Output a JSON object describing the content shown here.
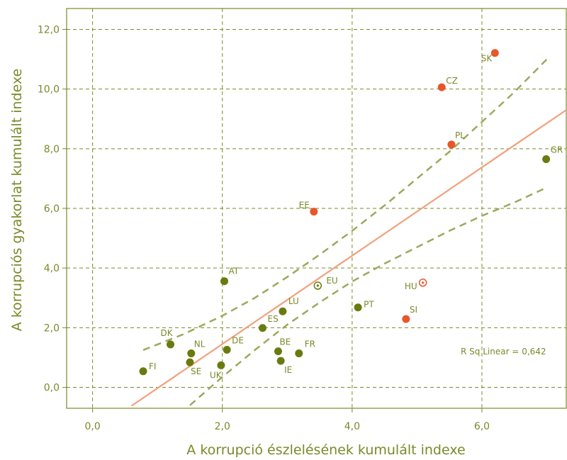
{
  "chart_data": {
    "type": "scatter",
    "title": "",
    "xlabel": "A korrupció észlelésének kumulált indexe",
    "ylabel": "A korrupciós gyakorlat kumulált indexe",
    "xlim": [
      -0.4,
      7.3
    ],
    "ylim": [
      -0.7,
      12.7
    ],
    "xticks": [
      "0,0",
      "2,0",
      "4,0",
      "6,0"
    ],
    "xtick_values": [
      0,
      2,
      4,
      6
    ],
    "yticks": [
      "0,0",
      "2,0",
      "4,0",
      "6,0",
      "8,0",
      "10,0",
      "12,0"
    ],
    "ytick_values": [
      0,
      2,
      4,
      6,
      8,
      10,
      12
    ],
    "grid": true,
    "colors": {
      "green": "#6b7a0f",
      "orange": "#e8562a",
      "fit_line": "#f2a07b",
      "ci_line": "#9aaa5c",
      "grid": "#7a8a2a",
      "axis_text": "#7a8a2a"
    },
    "points": [
      {
        "label": "FI",
        "x": 0.78,
        "y": 0.54,
        "color": "green",
        "marker": "dot"
      },
      {
        "label": "DK",
        "x": 1.2,
        "y": 1.44,
        "color": "green",
        "marker": "dot"
      },
      {
        "label": "NL",
        "x": 1.52,
        "y": 1.14,
        "color": "green",
        "marker": "dot"
      },
      {
        "label": "SE",
        "x": 1.5,
        "y": 0.84,
        "color": "green",
        "marker": "dot"
      },
      {
        "label": "UK",
        "x": 1.98,
        "y": 0.74,
        "color": "green",
        "marker": "dot"
      },
      {
        "label": "DE",
        "x": 2.07,
        "y": 1.26,
        "color": "green",
        "marker": "dot"
      },
      {
        "label": "AT",
        "x": 2.03,
        "y": 3.56,
        "color": "green",
        "marker": "dot"
      },
      {
        "label": "ES",
        "x": 2.62,
        "y": 1.99,
        "color": "green",
        "marker": "dot"
      },
      {
        "label": "LU",
        "x": 2.93,
        "y": 2.55,
        "color": "green",
        "marker": "dot"
      },
      {
        "label": "BE",
        "x": 2.86,
        "y": 1.21,
        "color": "green",
        "marker": "dot"
      },
      {
        "label": "IE",
        "x": 2.9,
        "y": 0.89,
        "color": "green",
        "marker": "dot"
      },
      {
        "label": "FR",
        "x": 3.18,
        "y": 1.14,
        "color": "green",
        "marker": "dot"
      },
      {
        "label": "EU",
        "x": 3.47,
        "y": 3.41,
        "color": "green",
        "marker": "ring"
      },
      {
        "label": "PT",
        "x": 4.09,
        "y": 2.68,
        "color": "green",
        "marker": "dot"
      },
      {
        "label": "GR",
        "x": 6.99,
        "y": 7.65,
        "color": "green",
        "marker": "dot"
      },
      {
        "label": "EE",
        "x": 3.41,
        "y": 5.89,
        "color": "orange",
        "marker": "dot"
      },
      {
        "label": "HU",
        "x": 5.09,
        "y": 3.51,
        "color": "orange",
        "marker": "ring"
      },
      {
        "label": "SI",
        "x": 4.83,
        "y": 2.29,
        "color": "orange",
        "marker": "dot"
      },
      {
        "label": "PL",
        "x": 5.53,
        "y": 8.14,
        "color": "orange",
        "marker": "dot"
      },
      {
        "label": "CZ",
        "x": 5.38,
        "y": 10.06,
        "color": "orange",
        "marker": "dot"
      },
      {
        "label": "SK",
        "x": 6.2,
        "y": 11.21,
        "color": "orange",
        "marker": "dot"
      }
    ],
    "fit_line": {
      "x": [
        0.6,
        7.3
      ],
      "y": [
        -0.62,
        9.3
      ]
    },
    "ci_upper": {
      "x": [
        0.78,
        1.4,
        2.0,
        2.5,
        3.0,
        3.5,
        4.0,
        4.5,
        5.0,
        5.5,
        6.0,
        6.5,
        7.0
      ],
      "y": [
        1.25,
        1.78,
        2.4,
        3.0,
        3.7,
        4.45,
        5.25,
        6.1,
        7.0,
        7.9,
        8.9,
        9.9,
        11.0
      ]
    },
    "ci_lower": {
      "x": [
        1.5,
        2.0,
        2.5,
        3.0,
        3.5,
        4.0,
        4.5,
        5.0,
        5.5,
        6.0,
        6.5,
        6.95
      ],
      "y": [
        -0.6,
        0.35,
        1.25,
        2.1,
        2.85,
        3.55,
        4.15,
        4.7,
        5.25,
        5.75,
        6.2,
        6.65
      ]
    },
    "annotations": [
      {
        "text": "R Sq Linear = ",
        "value": "0,642"
      }
    ]
  }
}
